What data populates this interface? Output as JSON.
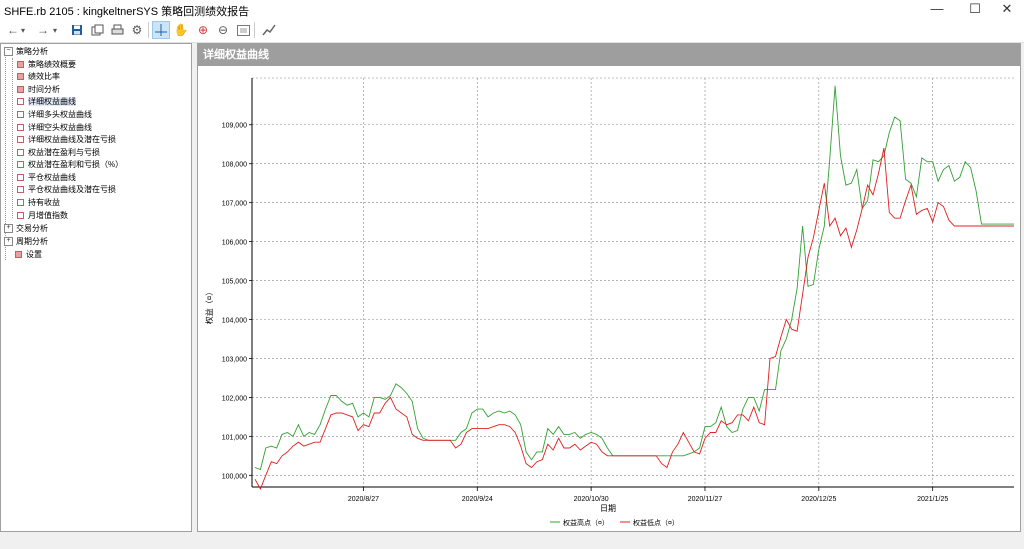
{
  "window": {
    "title": "SHFE.rb 2105 : kingkeltnerSYS 策略回测绩效报告"
  },
  "window_controls": {
    "minimize": "—",
    "maximize": "☐",
    "close": "✕"
  },
  "tree": {
    "root_label": "策略分析",
    "children": [
      "策略绩效概要",
      "绩效比率",
      "时间分析",
      "详细权益曲线",
      "详细多头权益曲线",
      "详细空头权益曲线",
      "详细权益曲线及潜在亏损",
      "权益潜在盈利与亏损",
      "权益潜在盈利和亏损（%）",
      "平仓权益曲线",
      "平仓权益曲线及潜在亏损",
      "持有收益",
      "月增值指数"
    ],
    "selected": "详细权益曲线",
    "siblings": [
      "交易分析",
      "周期分析"
    ],
    "settings": "设置"
  },
  "panel": {
    "title": "详细权益曲线"
  },
  "chart_data": {
    "type": "line",
    "title": "",
    "xlabel": "日期",
    "ylabel": "权益（¤）",
    "ylim": [
      99700,
      110200
    ],
    "yticks": [
      100000,
      101000,
      102000,
      103000,
      104000,
      105000,
      106000,
      107000,
      108000,
      109000
    ],
    "ytick_labels": [
      "100,000",
      "101,000",
      "102,000",
      "103,000",
      "104,000",
      "105,000",
      "106,000",
      "107,000",
      "108,000",
      "109,000"
    ],
    "xtick_labels": [
      "2020/8/27",
      "2020/9/24",
      "2020/10/30",
      "2020/11/27",
      "2020/12/25",
      "2021/1/25"
    ],
    "xtick_index": [
      20,
      41,
      62,
      83,
      104,
      125
    ],
    "grid": true,
    "legend_position": "bottom-center",
    "colors": {
      "high": "#33a033",
      "low": "#e02020"
    },
    "series": [
      {
        "name": "权益高点（¤）",
        "values": [
          100200,
          100150,
          100700,
          100750,
          100700,
          101050,
          101100,
          101000,
          101300,
          101000,
          101100,
          101050,
          101300,
          101700,
          102050,
          102050,
          101900,
          101800,
          101850,
          101500,
          101600,
          101500,
          102000,
          102000,
          101950,
          102050,
          102350,
          102250,
          102100,
          101900,
          101200,
          100950,
          100900,
          100900,
          100900,
          100900,
          100900,
          100900,
          101100,
          101200,
          101600,
          101700,
          101700,
          101500,
          101600,
          101650,
          101600,
          101650,
          101550,
          101300,
          100600,
          100400,
          100600,
          100600,
          101200,
          101050,
          101250,
          101050,
          101050,
          101100,
          100950,
          101050,
          101100,
          101050,
          100950,
          100700,
          100500,
          100500,
          100500,
          100500,
          100500,
          100500,
          100500,
          100500,
          100500,
          100500,
          100500,
          100500,
          100500,
          100500,
          100550,
          100600,
          100700,
          101250,
          101250,
          101350,
          101750,
          101250,
          101100,
          101150,
          101700,
          102000,
          102000,
          101650,
          102200,
          102200,
          102200,
          103200,
          103500,
          104000,
          104800,
          106400,
          104850,
          104900,
          105800,
          106400,
          108100,
          110000,
          108200,
          107450,
          107500,
          107850,
          106850,
          107050,
          108100,
          108050,
          108200,
          108800,
          109200,
          109100,
          107600,
          107500,
          107150,
          108150,
          108050,
          108050,
          107550,
          107850,
          107950,
          107550,
          107650,
          108050,
          107900,
          107300,
          106450,
          106450,
          106450,
          106450,
          106450,
          106450,
          106450
        ]
      },
      {
        "name": "权益低点（¤）",
        "values": [
          99900,
          99650,
          100000,
          100350,
          100300,
          100500,
          100600,
          100750,
          100850,
          100750,
          100800,
          100850,
          100850,
          101200,
          101550,
          101600,
          101600,
          101550,
          101500,
          101150,
          101300,
          101250,
          101600,
          101600,
          101850,
          102000,
          101700,
          101600,
          101500,
          101050,
          100950,
          100900,
          100900,
          100900,
          100900,
          100900,
          100900,
          100700,
          100800,
          101100,
          101200,
          101200,
          101200,
          101200,
          101250,
          101300,
          101300,
          101250,
          101100,
          100750,
          100300,
          100200,
          100350,
          100400,
          100800,
          100650,
          100950,
          100700,
          100700,
          100800,
          100650,
          100750,
          100850,
          100800,
          100600,
          100500,
          100500,
          100500,
          100500,
          100500,
          100500,
          100500,
          100500,
          100500,
          100500,
          100300,
          100200,
          100600,
          100800,
          101100,
          100850,
          100600,
          100550,
          100950,
          101100,
          101100,
          101400,
          101300,
          101350,
          101550,
          101550,
          101400,
          101750,
          101350,
          101300,
          103000,
          103050,
          103550,
          104000,
          103750,
          103700,
          104650,
          105600,
          106100,
          106800,
          107500,
          106400,
          106600,
          106150,
          106350,
          105850,
          106300,
          106850,
          107450,
          107200,
          107750,
          108400,
          106750,
          106600,
          106600,
          107050,
          107450,
          106700,
          106800,
          106850,
          106500,
          107000,
          106900,
          106550,
          106400,
          106400,
          106400,
          106400,
          106400,
          106400,
          106400,
          106400,
          106400,
          106400,
          106400,
          106400
        ]
      }
    ]
  }
}
